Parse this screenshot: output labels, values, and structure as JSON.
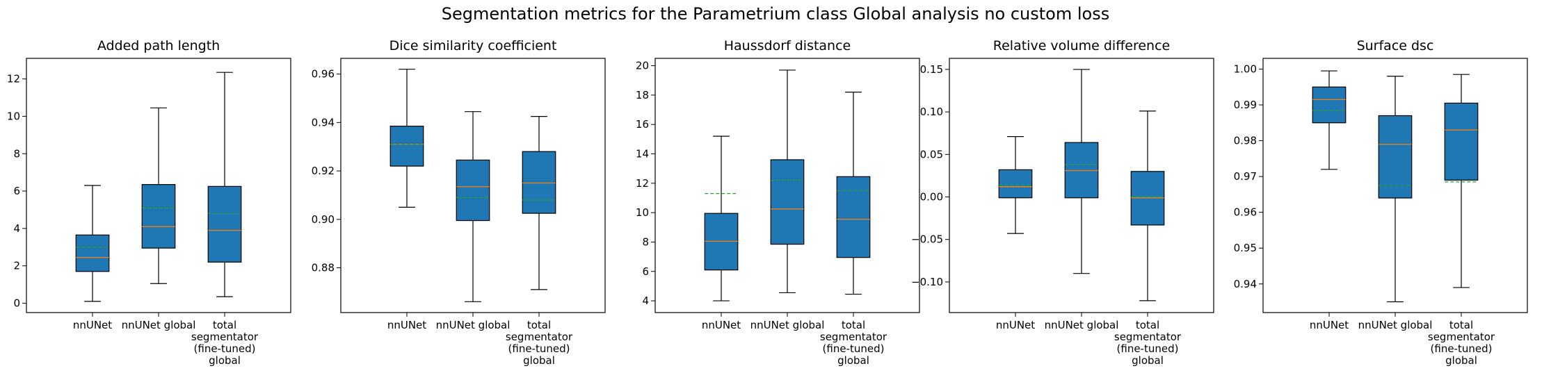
{
  "figure": {
    "title": "Segmentation metrics for the Parametrium class Global analysis no custom loss"
  },
  "style": {
    "box_fill": "#1f77b4",
    "median_color": "#ff7f0e",
    "mean_color": "#2ca02c",
    "whisker_color": "#000000"
  },
  "chart_data": [
    {
      "type": "box",
      "title": "Added path length",
      "categories": [
        "nnUNet",
        "nnUNet global",
        "total segmentator (fine-tuned) global"
      ],
      "category_lines": [
        [
          "nnUNet"
        ],
        [
          "nnUNet global"
        ],
        [
          "total",
          "segmentator",
          "(fine-tuned)",
          "global"
        ]
      ],
      "ylim": [
        -0.5,
        13.1
      ],
      "yticks": [
        0,
        2,
        4,
        6,
        8,
        10,
        12
      ],
      "tick_labels": [
        "0",
        "2",
        "4",
        "6",
        "8",
        "10",
        "12"
      ],
      "boxes": [
        {
          "min": 0.1,
          "q1": 1.7,
          "median": 2.45,
          "q3": 3.65,
          "max": 6.3,
          "mean": 3.0
        },
        {
          "min": 1.05,
          "q1": 2.95,
          "median": 4.1,
          "q3": 6.35,
          "max": 10.45,
          "mean": 5.1
        },
        {
          "min": 0.35,
          "q1": 2.2,
          "median": 3.9,
          "q3": 6.25,
          "max": 12.35,
          "mean": 4.8
        }
      ]
    },
    {
      "type": "box",
      "title": "Dice similarity coefficient",
      "categories": [
        "nnUNet",
        "nnUNet global",
        "total segmentator (fine-tuned) global"
      ],
      "category_lines": [
        [
          "nnUNet"
        ],
        [
          "nnUNet global"
        ],
        [
          "total",
          "segmentator",
          "(fine-tuned)",
          "global"
        ]
      ],
      "ylim": [
        0.8615,
        0.9665
      ],
      "yticks": [
        0.88,
        0.9,
        0.92,
        0.94,
        0.96
      ],
      "tick_labels": [
        "0.88",
        "0.90",
        "0.92",
        "0.94",
        "0.96"
      ],
      "boxes": [
        {
          "min": 0.905,
          "q1": 0.922,
          "median": 0.931,
          "q3": 0.9385,
          "max": 0.962,
          "mean": 0.931
        },
        {
          "min": 0.866,
          "q1": 0.8995,
          "median": 0.9135,
          "q3": 0.9245,
          "max": 0.9445,
          "mean": 0.909
        },
        {
          "min": 0.871,
          "q1": 0.9025,
          "median": 0.915,
          "q3": 0.928,
          "max": 0.9425,
          "mean": 0.908
        }
      ]
    },
    {
      "type": "box",
      "title": "Haussdorf distance",
      "categories": [
        "nnUNet",
        "nnUNet global",
        "total segmentator (fine-tuned) global"
      ],
      "category_lines": [
        [
          "nnUNet"
        ],
        [
          "nnUNet global"
        ],
        [
          "total",
          "segmentator",
          "(fine-tuned)",
          "global"
        ]
      ],
      "ylim": [
        3.2,
        20.5
      ],
      "yticks": [
        4,
        6,
        8,
        10,
        12,
        14,
        16,
        18,
        20
      ],
      "tick_labels": [
        "4",
        "6",
        "8",
        "10",
        "12",
        "14",
        "16",
        "18",
        "20"
      ],
      "boxes": [
        {
          "min": 4.0,
          "q1": 6.1,
          "median": 8.05,
          "q3": 9.95,
          "max": 15.2,
          "mean": 11.3
        },
        {
          "min": 4.55,
          "q1": 7.85,
          "median": 10.25,
          "q3": 13.6,
          "max": 19.7,
          "mean": 12.2
        },
        {
          "min": 4.45,
          "q1": 6.95,
          "median": 9.55,
          "q3": 12.45,
          "max": 18.2,
          "mean": 11.5
        }
      ]
    },
    {
      "type": "box",
      "title": "Relative volume difference",
      "categories": [
        "nnUNet",
        "nnUNet global",
        "total segmentator (fine-tuned) global"
      ],
      "category_lines": [
        [
          "nnUNet"
        ],
        [
          "nnUNet global"
        ],
        [
          "total",
          "segmentator",
          "(fine-tuned)",
          "global"
        ]
      ],
      "ylim": [
        -0.136,
        0.163
      ],
      "yticks": [
        -0.1,
        -0.05,
        0.0,
        0.05,
        0.1,
        0.15
      ],
      "tick_labels": [
        "−0.10",
        "−0.05",
        "0.00",
        "0.05",
        "0.10",
        "0.15"
      ],
      "boxes": [
        {
          "min": -0.043,
          "q1": -0.001,
          "median": 0.012,
          "q3": 0.032,
          "max": 0.071,
          "mean": 0.014
        },
        {
          "min": -0.09,
          "q1": -0.001,
          "median": 0.031,
          "q3": 0.064,
          "max": 0.15,
          "mean": 0.038
        },
        {
          "min": -0.122,
          "q1": -0.033,
          "median": -0.001,
          "q3": 0.03,
          "max": 0.101,
          "mean": 0.0
        }
      ]
    },
    {
      "type": "box",
      "title": "Surface dsc",
      "categories": [
        "nnUNet",
        "nnUNet global",
        "total segmentator (fine-tuned) global"
      ],
      "category_lines": [
        [
          "nnUNet"
        ],
        [
          "nnUNet global"
        ],
        [
          "total",
          "segmentator",
          "(fine-tuned)",
          "global"
        ]
      ],
      "ylim": [
        0.932,
        1.003
      ],
      "yticks": [
        0.94,
        0.95,
        0.96,
        0.97,
        0.98,
        0.99,
        1.0
      ],
      "tick_labels": [
        "0.94",
        "0.95",
        "0.96",
        "0.97",
        "0.98",
        "0.99",
        "1.00"
      ],
      "boxes": [
        {
          "min": 0.972,
          "q1": 0.985,
          "median": 0.9915,
          "q3": 0.995,
          "max": 0.9995,
          "mean": 0.9885
        },
        {
          "min": 0.935,
          "q1": 0.964,
          "median": 0.979,
          "q3": 0.987,
          "max": 0.998,
          "mean": 0.9675
        },
        {
          "min": 0.939,
          "q1": 0.969,
          "median": 0.983,
          "q3": 0.9905,
          "max": 0.9985,
          "mean": 0.9685
        }
      ]
    }
  ]
}
